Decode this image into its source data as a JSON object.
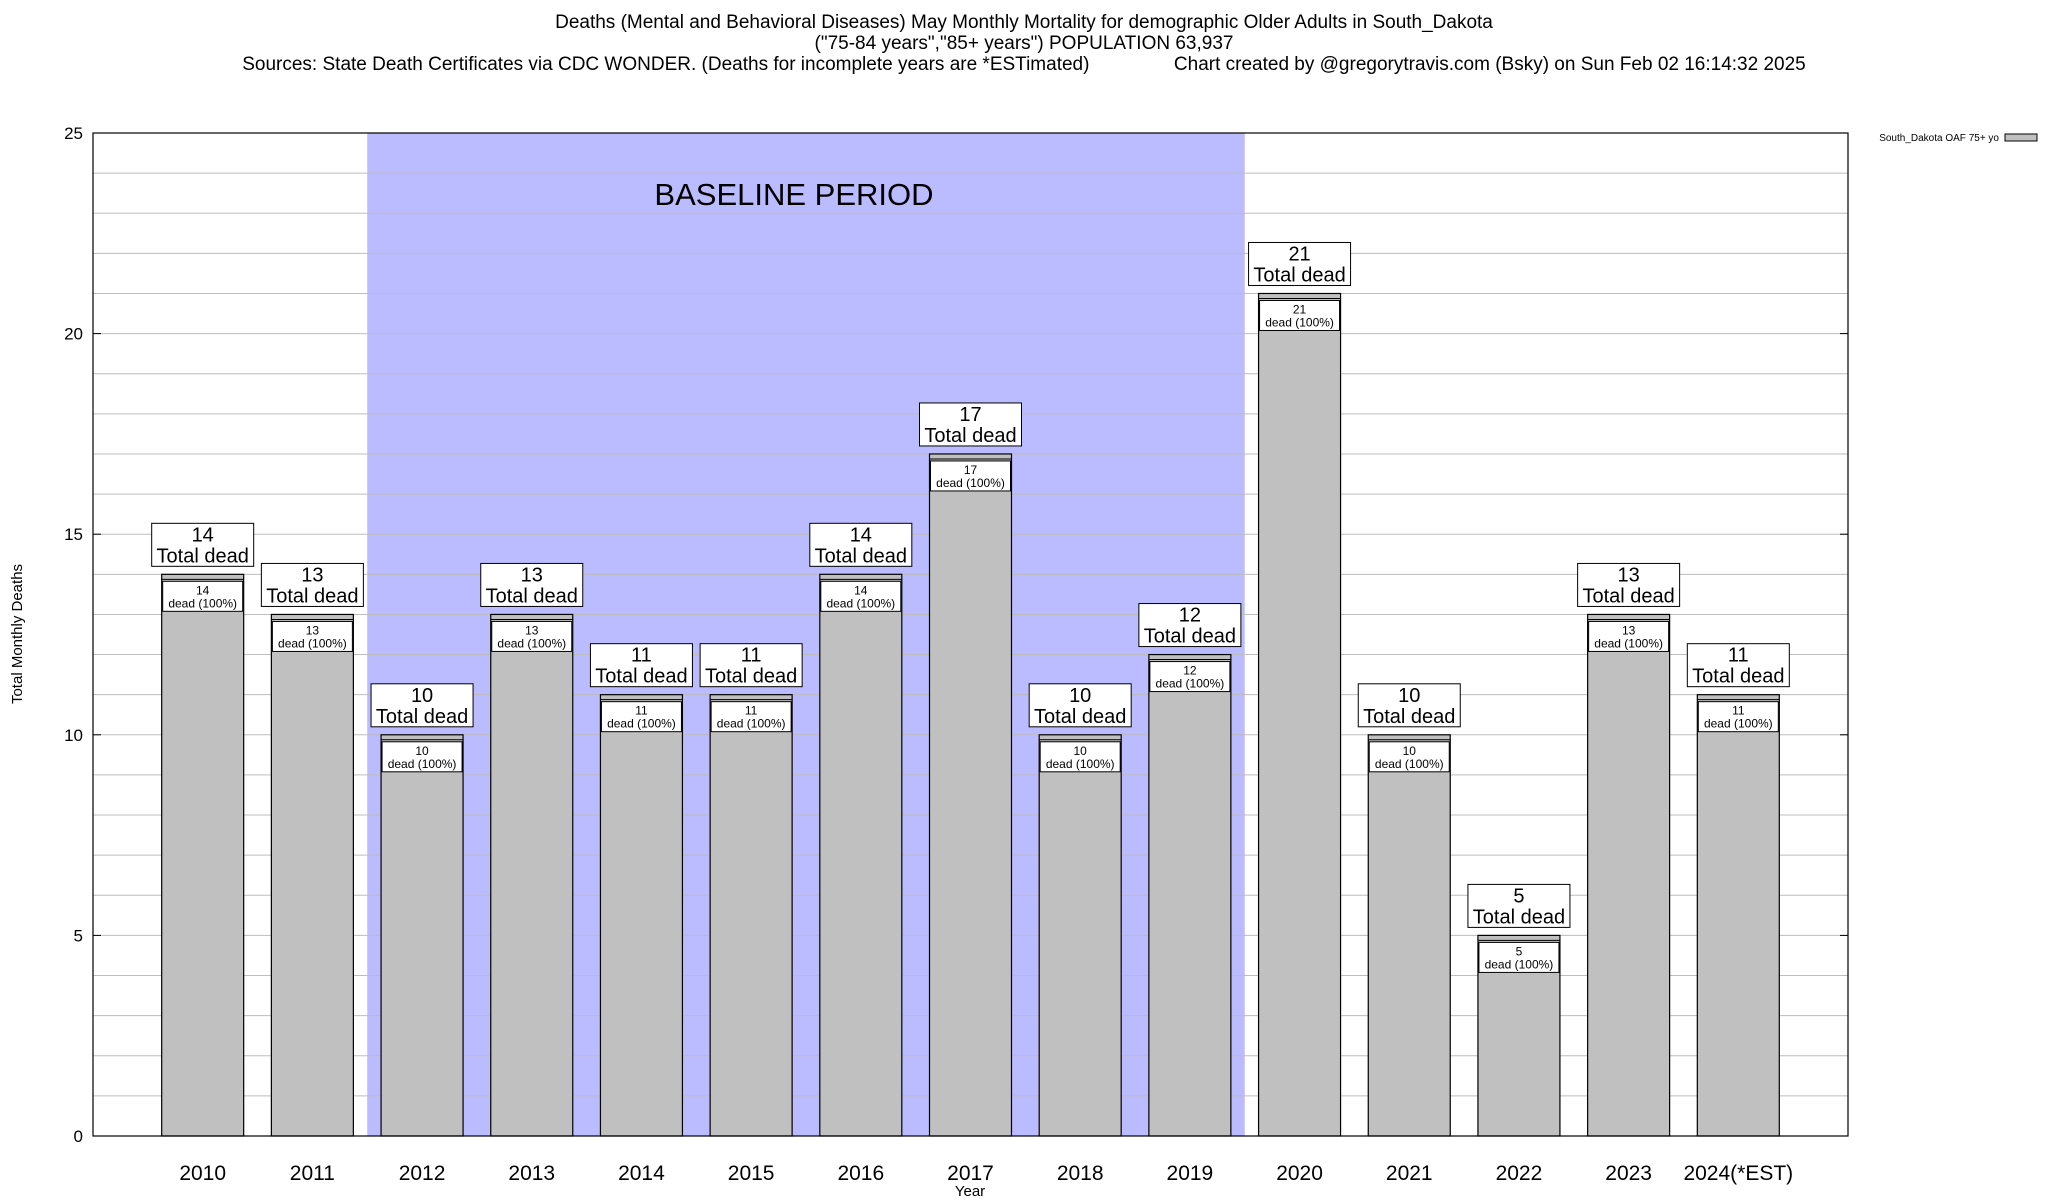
{
  "chart_data": {
    "type": "bar",
    "title": "Deaths (Mental and Behavioral Diseases) May Monthly Mortality for demographic Older Adults in South_Dakota",
    "subtitle": "(\"75-84 years\",\"85+ years\") POPULATION 63,937",
    "sources_line": "Sources: State Death Certificates via CDC WONDER. (Deaths for incomplete years are *ESTimated)",
    "credit_line": "Chart created by @gregorytravis.com (Bsky) on Sun Feb 02 16:14:32 2025",
    "xlabel": "Year",
    "ylabel": "Total Monthly Deaths",
    "ylim": [
      0,
      25
    ],
    "yticks": [
      "0",
      "5",
      "10",
      "15",
      "20",
      "25"
    ],
    "grid": true,
    "legend_position": "top-right",
    "categories": [
      "2010",
      "2011",
      "2012",
      "2013",
      "2014",
      "2015",
      "2016",
      "2017",
      "2018",
      "2019",
      "2020",
      "2021",
      "2022",
      "2023",
      "2024(*EST)"
    ],
    "series": [
      {
        "name": "South_Dakota OAF 75+ yo",
        "color": "#c0c0c0",
        "values": [
          14,
          13,
          10,
          13,
          11,
          11,
          14,
          17,
          10,
          12,
          21,
          10,
          5,
          13,
          11
        ]
      }
    ],
    "total_labels": [
      "14",
      "13",
      "10",
      "13",
      "11",
      "11",
      "14",
      "17",
      "10",
      "12",
      "21",
      "10",
      "5",
      "13",
      "11"
    ],
    "total_caption": "Total dead",
    "segment_labels": [
      "14",
      "13",
      "10",
      "13",
      "11",
      "11",
      "14",
      "17",
      "10",
      "12",
      "21",
      "10",
      "5",
      "13",
      "11"
    ],
    "segment_caption": "dead (100%)",
    "baseline": {
      "label": "BASELINE PERIOD",
      "start_category": "2012",
      "end_category": "2019",
      "color": "#bbbbff"
    }
  }
}
